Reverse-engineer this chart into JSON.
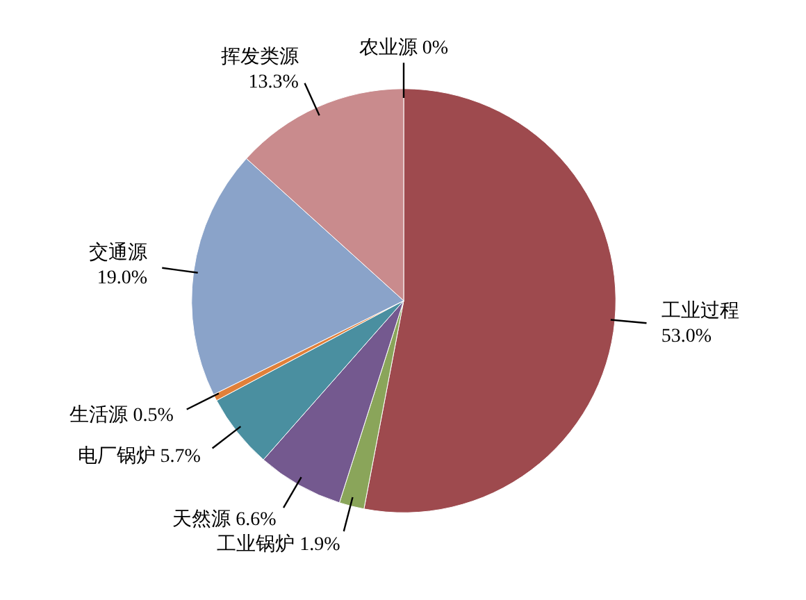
{
  "chart_data": {
    "type": "pie",
    "categories": [
      "工业过程",
      "工业锅炉",
      "天然源",
      "电厂锅炉",
      "生活源",
      "交通源",
      "挥发类源",
      "农业源"
    ],
    "values": [
      53.0,
      1.9,
      6.6,
      5.7,
      0.5,
      19.0,
      13.3,
      0
    ],
    "value_labels": [
      "53.0%",
      "1.9%",
      "6.6%",
      "5.7%",
      "0.5%",
      "19.0%",
      "13.3%",
      "0%"
    ],
    "colors": [
      "#9e4a4e",
      "#8aa55a",
      "#74598f",
      "#4a8fa0",
      "#e0803a",
      "#8aa3c9",
      "#c98b8d",
      "#9bbb59"
    ]
  }
}
